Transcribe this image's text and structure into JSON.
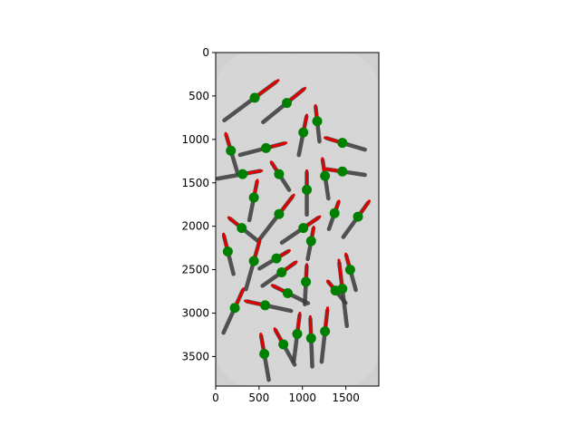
{
  "chart_data": {
    "type": "scatter",
    "title": "",
    "xlabel": "",
    "ylabel": "",
    "xlim": [
      0,
      1880
    ],
    "ylim": [
      3840,
      0
    ],
    "y_inverted": true,
    "grid": false,
    "background": "grayscale photograph of insects",
    "xticks": [
      0,
      500,
      1000,
      1500
    ],
    "yticks": [
      0,
      500,
      1000,
      1500,
      2000,
      2500,
      3000,
      3500
    ],
    "xtick_labels": [
      "0",
      "500",
      "1000",
      "1500"
    ],
    "ytick_labels": [
      "0",
      "500",
      "1000",
      "1500",
      "2000",
      "2500",
      "3000",
      "3500"
    ],
    "marker_color": "#008000",
    "arrow_color": "#e00000",
    "points": [
      {
        "x": 450,
        "y": 520,
        "dx": 270,
        "dy": -200
      },
      {
        "x": 820,
        "y": 580,
        "dx": 210,
        "dy": -170
      },
      {
        "x": 1170,
        "y": 790,
        "dx": -20,
        "dy": -180
      },
      {
        "x": 1010,
        "y": 920,
        "dx": 40,
        "dy": -200
      },
      {
        "x": 1460,
        "y": 1040,
        "dx": -200,
        "dy": -60
      },
      {
        "x": 580,
        "y": 1100,
        "dx": 230,
        "dy": -60
      },
      {
        "x": 175,
        "y": 1130,
        "dx": -60,
        "dy": -200
      },
      {
        "x": 310,
        "y": 1400,
        "dx": 220,
        "dy": -40
      },
      {
        "x": 730,
        "y": 1400,
        "dx": -90,
        "dy": -140
      },
      {
        "x": 1260,
        "y": 1420,
        "dx": -30,
        "dy": -200
      },
      {
        "x": 1460,
        "y": 1370,
        "dx": -200,
        "dy": -30
      },
      {
        "x": 1050,
        "y": 1580,
        "dx": 0,
        "dy": -220
      },
      {
        "x": 440,
        "y": 1670,
        "dx": 40,
        "dy": -200
      },
      {
        "x": 730,
        "y": 1860,
        "dx": 170,
        "dy": -220
      },
      {
        "x": 1640,
        "y": 1890,
        "dx": 130,
        "dy": -180
      },
      {
        "x": 1370,
        "y": 1850,
        "dx": 50,
        "dy": -140
      },
      {
        "x": 300,
        "y": 2020,
        "dx": -150,
        "dy": -120
      },
      {
        "x": 1010,
        "y": 2020,
        "dx": 190,
        "dy": -130
      },
      {
        "x": 1100,
        "y": 2170,
        "dx": 30,
        "dy": -160
      },
      {
        "x": 140,
        "y": 2290,
        "dx": -50,
        "dy": -200
      },
      {
        "x": 700,
        "y": 2370,
        "dx": 150,
        "dy": -90
      },
      {
        "x": 440,
        "y": 2400,
        "dx": 70,
        "dy": -250
      },
      {
        "x": 1550,
        "y": 2500,
        "dx": -50,
        "dy": -180
      },
      {
        "x": 760,
        "y": 2530,
        "dx": 170,
        "dy": -120
      },
      {
        "x": 1040,
        "y": 2640,
        "dx": 10,
        "dy": -200
      },
      {
        "x": 1380,
        "y": 2740,
        "dx": -90,
        "dy": -110
      },
      {
        "x": 1460,
        "y": 2720,
        "dx": -40,
        "dy": -330
      },
      {
        "x": 830,
        "y": 2770,
        "dx": -180,
        "dy": -90
      },
      {
        "x": 220,
        "y": 2940,
        "dx": 100,
        "dy": -220
      },
      {
        "x": 570,
        "y": 2910,
        "dx": -230,
        "dy": -50
      },
      {
        "x": 940,
        "y": 3240,
        "dx": 30,
        "dy": -240
      },
      {
        "x": 1260,
        "y": 3210,
        "dx": 30,
        "dy": -270
      },
      {
        "x": 1100,
        "y": 3290,
        "dx": -10,
        "dy": -250
      },
      {
        "x": 780,
        "y": 3360,
        "dx": -100,
        "dy": -180
      },
      {
        "x": 560,
        "y": 3470,
        "dx": -40,
        "dy": -230
      }
    ]
  }
}
